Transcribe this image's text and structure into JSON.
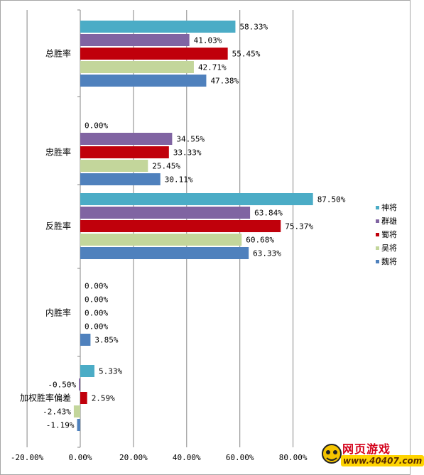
{
  "chart_data": {
    "type": "bar",
    "orientation": "horizontal",
    "categories": [
      "总胜率",
      "忠胜率",
      "反胜率",
      "内胜率",
      "加权胜率偏差"
    ],
    "series": [
      {
        "name": "神将",
        "color": "#4bacc6",
        "values": [
          58.33,
          0.0,
          87.5,
          0.0,
          5.33
        ],
        "labels": [
          "58.33%",
          "0.00%",
          "87.50%",
          "0.00%",
          "5.33%"
        ]
      },
      {
        "name": "群雄",
        "color": "#8064a2",
        "values": [
          41.03,
          34.55,
          63.84,
          0.0,
          -0.5
        ],
        "labels": [
          "41.03%",
          "34.55%",
          "63.84%",
          "0.00%",
          "-0.50%"
        ]
      },
      {
        "name": "蜀将",
        "color": "#c0000b",
        "values": [
          55.45,
          33.33,
          75.37,
          0.0,
          2.59
        ],
        "labels": [
          "55.45%",
          "33.33%",
          "75.37%",
          "0.00%",
          "2.59%"
        ]
      },
      {
        "name": "吴将",
        "color": "#c3d69b",
        "values": [
          42.71,
          25.45,
          60.68,
          0.0,
          -2.43
        ],
        "labels": [
          "42.71%",
          "25.45%",
          "60.68%",
          "0.00%",
          "-2.43%"
        ]
      },
      {
        "name": "魏将",
        "color": "#4f81bd",
        "values": [
          47.38,
          30.11,
          63.33,
          3.85,
          -1.19
        ],
        "labels": [
          "47.38%",
          "30.11%",
          "63.33%",
          "3.85%",
          "-1.19%"
        ]
      }
    ],
    "xlim": [
      -20,
      100
    ],
    "x_ticks": [
      "-20.00%",
      "0.00%",
      "20.00%",
      "40.00%",
      "60.00%",
      "80.00%"
    ],
    "legend_position": "right",
    "grid": true
  },
  "watermark": {
    "title": "网页游戏",
    "url": "www.40407.com"
  }
}
